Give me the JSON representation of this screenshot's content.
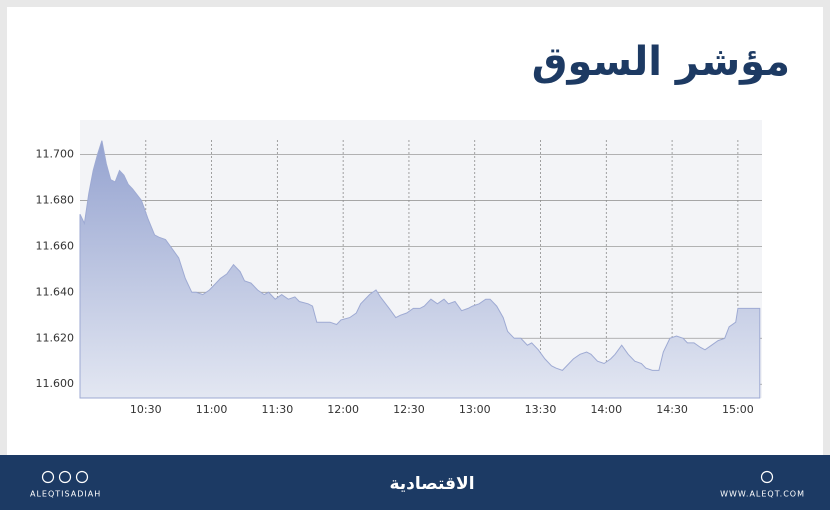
{
  "chart_data": {
    "type": "area",
    "title": "مؤشر السوق",
    "x": [
      "10:00",
      "10:02",
      "10:04",
      "10:06",
      "10:08",
      "10:10",
      "10:12",
      "10:14",
      "10:16",
      "10:18",
      "10:20",
      "10:22",
      "10:24",
      "10:28",
      "10:31",
      "10:34",
      "10:36",
      "10:39",
      "10:42",
      "10:45",
      "10:48",
      "10:51",
      "10:53",
      "10:56",
      "10:59",
      "11:02",
      "11:04",
      "11:07",
      "11:10",
      "11:13",
      "11:15",
      "11:18",
      "11:21",
      "11:24",
      "11:26",
      "11:29",
      "11:32",
      "11:35",
      "11:38",
      "11:40",
      "11:44",
      "11:46",
      "11:48",
      "11:51",
      "11:54",
      "11:57",
      "11:59",
      "12:03",
      "12:06",
      "12:08",
      "12:12",
      "12:15",
      "12:17",
      "12:21",
      "12:24",
      "12:26",
      "12:29",
      "12:32",
      "12:35",
      "12:37",
      "12:40",
      "12:43",
      "12:46",
      "12:48",
      "12:51",
      "12:54",
      "12:57",
      "12:59",
      "13:02",
      "13:05",
      "13:07",
      "13:10",
      "13:13",
      "13:15",
      "13:18",
      "13:21",
      "13:24",
      "13:26",
      "13:29",
      "13:32",
      "13:35",
      "13:37",
      "13:40",
      "13:43",
      "13:45",
      "13:48",
      "13:51",
      "13:53",
      "13:56",
      "13:59",
      "14:02",
      "14:04",
      "14:07",
      "14:10",
      "14:13",
      "14:16",
      "14:18",
      "14:21",
      "14:24",
      "14:26",
      "14:29",
      "14:32",
      "14:35",
      "14:37",
      "14:40",
      "14:43",
      "14:45",
      "14:48",
      "14:51",
      "14:54",
      "14:56",
      "14:59",
      "15:00",
      "15:10"
    ],
    "values": [
      11.674,
      11.67,
      11.683,
      11.693,
      11.7,
      11.706,
      11.696,
      11.689,
      11.688,
      11.693,
      11.691,
      11.687,
      11.685,
      11.68,
      11.672,
      11.665,
      11.664,
      11.663,
      11.659,
      11.655,
      11.646,
      11.64,
      11.64,
      11.639,
      11.641,
      11.644,
      11.646,
      11.648,
      11.652,
      11.649,
      11.645,
      11.644,
      11.641,
      11.639,
      11.64,
      11.637,
      11.639,
      11.637,
      11.638,
      11.636,
      11.635,
      11.634,
      11.627,
      11.627,
      11.627,
      11.626,
      11.628,
      11.629,
      11.631,
      11.635,
      11.639,
      11.641,
      11.638,
      11.633,
      11.629,
      11.63,
      11.631,
      11.633,
      11.633,
      11.634,
      11.637,
      11.635,
      11.637,
      11.635,
      11.636,
      11.632,
      11.633,
      11.634,
      11.635,
      11.637,
      11.637,
      11.634,
      11.629,
      11.623,
      11.62,
      11.62,
      11.617,
      11.618,
      11.615,
      11.611,
      11.608,
      11.607,
      11.606,
      11.609,
      11.611,
      11.613,
      11.614,
      11.613,
      11.61,
      11.609,
      11.611,
      11.613,
      11.617,
      11.613,
      11.61,
      11.609,
      11.607,
      11.606,
      11.606,
      11.614,
      11.62,
      11.621,
      11.62,
      11.618,
      11.618,
      11.616,
      11.615,
      11.617,
      11.619,
      11.62,
      11.625,
      11.627,
      11.633,
      11.633
    ],
    "color": "#9eaad3",
    "xlim": [
      "10:00",
      "15:11"
    ],
    "xticks": [
      "10:30",
      "11:00",
      "11:30",
      "12:00",
      "12:30",
      "13:00",
      "13:30",
      "14:00",
      "14:30",
      "15:00"
    ],
    "ylim": [
      11.594,
      11.715
    ],
    "yticks": [
      {
        "value": 11.6,
        "label": "11.600"
      },
      {
        "value": 11.62,
        "label": "11.620"
      },
      {
        "value": 11.64,
        "label": "11.640"
      },
      {
        "value": 11.66,
        "label": "11.660"
      },
      {
        "value": 11.68,
        "label": "11.680"
      },
      {
        "value": 11.7,
        "label": "11.700"
      }
    ],
    "grid": true
  },
  "footer": {
    "left": "ALEQTISADIAH",
    "center": "الاقتصادية",
    "right": "WWW.ALEQT.COM"
  }
}
